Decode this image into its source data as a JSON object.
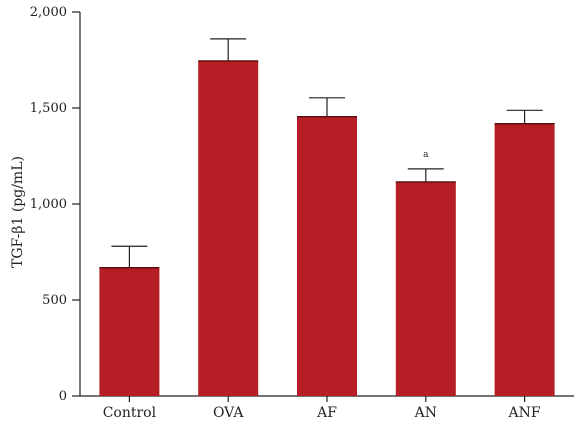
{
  "chart_data": {
    "type": "bar",
    "categories": [
      "Control",
      "OVA",
      "AF",
      "AN",
      "ANF"
    ],
    "values": [
      668,
      1745,
      1455,
      1115,
      1418
    ],
    "errors": [
      112,
      115,
      98,
      68,
      70
    ],
    "ylabel": "TGF-β1 (pg/mL)",
    "xlabel": "",
    "ylim": [
      0,
      2000
    ],
    "yticks": [
      0,
      500,
      1000,
      1500,
      2000
    ],
    "ytick_labels": [
      "0",
      "500",
      "1,000",
      "1,500",
      "2,000"
    ],
    "annotations": [
      {
        "category": "AN",
        "text": "a"
      }
    ],
    "bar_color": "#b41e24",
    "grid": false
  }
}
